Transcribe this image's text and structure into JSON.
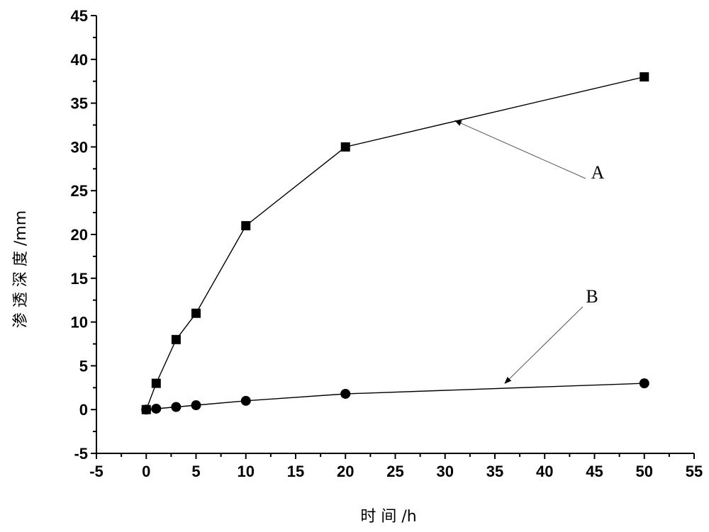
{
  "chart_data": {
    "type": "scatter",
    "title": "",
    "xlabel": "时 间 /h",
    "ylabel": "渗 透 深 度 /mm",
    "xlim": [
      -5,
      55
    ],
    "ylim": [
      -5,
      45
    ],
    "x_ticks": [
      -5,
      0,
      5,
      10,
      15,
      20,
      25,
      30,
      35,
      40,
      45,
      50,
      55
    ],
    "y_ticks": [
      -5,
      0,
      5,
      10,
      15,
      20,
      25,
      30,
      35,
      40,
      45
    ],
    "grid": false,
    "legend": "none",
    "series": [
      {
        "marker": "square",
        "label": "A",
        "x": [
          0,
          1,
          3,
          5,
          10,
          20,
          50
        ],
        "y": [
          0,
          3,
          8,
          11,
          21,
          30,
          38
        ]
      },
      {
        "marker": "circle",
        "label": "B",
        "x": [
          0,
          1,
          3,
          5,
          10,
          20,
          50
        ],
        "y": [
          0,
          0.1,
          0.3,
          0.5,
          1,
          1.8,
          3
        ]
      }
    ],
    "annotations": [
      {
        "text": "A",
        "points_to": [
          31,
          33
        ]
      },
      {
        "text": "B",
        "points_to": [
          36,
          3
        ]
      }
    ]
  }
}
